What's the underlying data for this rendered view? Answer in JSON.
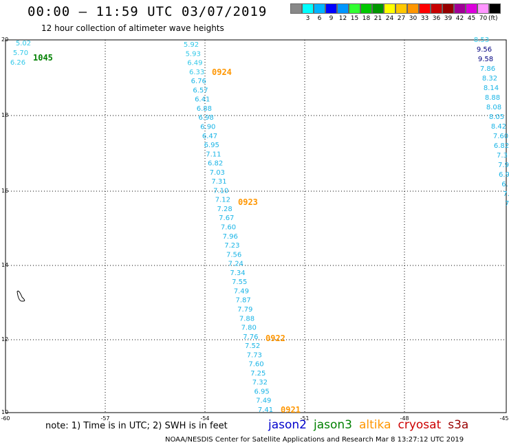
{
  "header": {
    "title": "00:00 – 11:59 UTC 03/07/2019",
    "subtitle": "12 hour collection of altimeter wave heights"
  },
  "legend": {
    "colors": [
      "#888888",
      "#00ffff",
      "#00b4ff",
      "#0000ff",
      "#0096ff",
      "#32ff32",
      "#00c800",
      "#009600",
      "#ffff00",
      "#ffc800",
      "#ff9600",
      "#ff0000",
      "#c80000",
      "#960000",
      "#a00096",
      "#dc00dc",
      "#ff96ff",
      "#000000"
    ],
    "labels": [
      "",
      "3",
      "6",
      "9",
      "12",
      "15",
      "18",
      "21",
      "24",
      "27",
      "30",
      "33",
      "36",
      "39",
      "42",
      "45",
      "70",
      ""
    ],
    "unit": "(ft)"
  },
  "map": {
    "x_ticks": [
      "-60",
      "-57",
      "-54",
      "-51",
      "-48",
      "-45"
    ],
    "y_ticks": [
      "20",
      "18",
      "16",
      "14",
      "12",
      "10"
    ],
    "passes": [
      {
        "time": "1045",
        "color": "#008000",
        "values": [
          "5.02",
          "5.70",
          "6.26"
        ]
      },
      {
        "time": "0924",
        "color": "#ff9600",
        "values": [
          "5.92",
          "5.93",
          "6.49",
          "6.33",
          "6.76",
          "6.57",
          "6.41",
          "6.88",
          "6.98",
          "6.90",
          "6.47",
          "6.95",
          "7.11",
          "6.82",
          "7.03",
          "7.31",
          "7.10"
        ]
      },
      {
        "time": "0923",
        "color": "#ff9600",
        "values": [
          "7.12",
          "7.28",
          "7.67",
          "7.60",
          "7.96",
          "7.23",
          "7.56",
          "7.24",
          "7.34",
          "7.55",
          "7.49",
          "7.87",
          "7.79",
          "7.88",
          "7.80",
          "7.76"
        ]
      },
      {
        "time": "0922",
        "color": "#ff9600",
        "values": [
          "7.52",
          "7.73",
          "7.60",
          "7.25",
          "7.32",
          "6.95",
          "7.49",
          "7.41"
        ]
      },
      {
        "time": "0921",
        "color": "#ff9600",
        "values": []
      },
      {
        "time": "",
        "color": "#00b4ff",
        "values": [
          "8.53",
          "9.56",
          "9.58",
          "7.86",
          "8.32",
          "8.14",
          "8.88",
          "8.08",
          "8.05",
          "8.42",
          "7.60",
          "6.82",
          "7.3",
          "7.9",
          "6.9",
          "6.",
          "7.",
          "7"
        ]
      }
    ]
  },
  "footer": {
    "note": "note: 1) Time is in UTC; 2) SWH is in feet",
    "satellites": [
      {
        "name": "jason2",
        "color": "#0000cc"
      },
      {
        "name": "jason3",
        "color": "#008000"
      },
      {
        "name": "altika",
        "color": "#ff9600"
      },
      {
        "name": "cryosat",
        "color": "#cc0000"
      },
      {
        "name": "s3a",
        "color": "#990000"
      }
    ],
    "credit": "NOAA/NESDIS Center for Satellite Applications and Research    Mar  8 13:27:12 UTC 2019"
  }
}
